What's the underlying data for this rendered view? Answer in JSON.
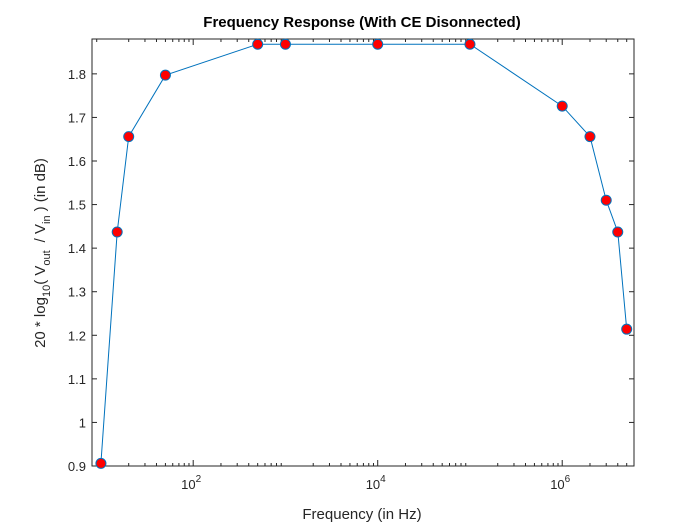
{
  "chart_data": {
    "type": "line",
    "title": "Frequency Response (With CE Disonnected)",
    "xlabel": "Frequency (in Hz)",
    "ylabel": {
      "prefix": "20 * log",
      "prefix_sub": "10",
      "open": "( V",
      "num_sub": "out",
      "slash": "/  V",
      "den_sub": "in",
      "suffix": ") (in dB)"
    },
    "x_scale": "log",
    "xlim": [
      8,
      6000000
    ],
    "ylim": [
      0.9,
      1.88
    ],
    "x_ticks": [
      {
        "value": 100,
        "base": "10",
        "exp": "2"
      },
      {
        "value": 10000,
        "base": "10",
        "exp": "4"
      },
      {
        "value": 1000000,
        "base": "10",
        "exp": "6"
      }
    ],
    "y_ticks": [
      "0.9",
      "1",
      "1.1",
      "1.2",
      "1.3",
      "1.4",
      "1.5",
      "1.6",
      "1.7",
      "1.8"
    ],
    "grid": false,
    "colors": {
      "line": "#0072BD",
      "marker_fill": "#FF0000",
      "marker_edge": "#0072BD"
    },
    "series": [
      {
        "x": [
          10,
          15,
          20,
          50,
          500,
          1000,
          10000,
          100000,
          1000000,
          2000000,
          3000000,
          4000000,
          5000000
        ],
        "y": [
          0.906,
          1.437,
          1.656,
          1.797,
          1.868,
          1.868,
          1.868,
          1.868,
          1.726,
          1.656,
          1.51,
          1.437,
          1.214
        ]
      }
    ]
  }
}
